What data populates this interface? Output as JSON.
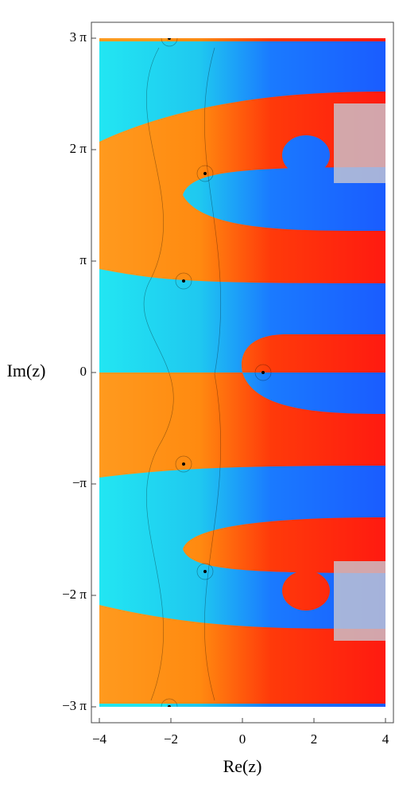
{
  "chart_data": {
    "type": "complex-plot",
    "xlabel": "Re(z)",
    "ylabel": "Im(z)",
    "xlim": [
      -4,
      4
    ],
    "xticks": [
      {
        "value": -4,
        "label": "−4"
      },
      {
        "value": -2,
        "label": "−2"
      },
      0,
      2,
      4
    ],
    "ylim": [
      -9.42477796,
      9.42477796
    ],
    "yticks": [
      {
        "value": -9.42477796,
        "label": "−3 π"
      },
      {
        "value": -6.28318531,
        "label": "−2 π"
      },
      {
        "value": -3.14159265,
        "label": "−π"
      },
      0,
      {
        "value": 3.14159265,
        "label": "π"
      },
      {
        "value": 6.28318531,
        "label": "2 π"
      },
      {
        "value": 9.42477796,
        "label": "3 π"
      }
    ]
  }
}
